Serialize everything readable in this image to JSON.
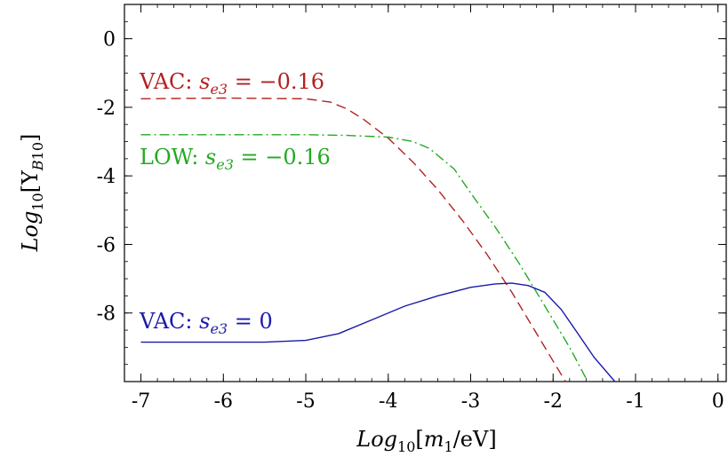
{
  "chart_data": {
    "type": "line",
    "xlabel": "Log10[m1/eV]",
    "ylabel": "Log10[YB10]",
    "xlim": [
      -7.2,
      0.1
    ],
    "ylim": [
      -10,
      1
    ],
    "x_ticks": [
      "-7",
      "-6",
      "-5",
      "-4",
      "-3",
      "-2",
      "-1",
      "0"
    ],
    "y_ticks": [
      "0",
      "-2",
      "-4",
      "-6",
      "-8"
    ],
    "grid": false,
    "series": [
      {
        "name": "VAC: se3 = −0.16",
        "label_prefix": "VAC: ",
        "label_var": "s",
        "label_sub": "e3",
        "label_rest": " = −0.16",
        "color": "#b22222",
        "style": "dashed",
        "points": [
          [
            -7.0,
            -1.75
          ],
          [
            -6.0,
            -1.73
          ],
          [
            -5.0,
            -1.75
          ],
          [
            -4.7,
            -1.85
          ],
          [
            -4.5,
            -2.05
          ],
          [
            -4.3,
            -2.35
          ],
          [
            -4.0,
            -2.9
          ],
          [
            -3.7,
            -3.6
          ],
          [
            -3.4,
            -4.4
          ],
          [
            -3.1,
            -5.3
          ],
          [
            -2.8,
            -6.3
          ],
          [
            -2.5,
            -7.4
          ],
          [
            -2.2,
            -8.6
          ],
          [
            -2.0,
            -9.4
          ],
          [
            -1.85,
            -10.0
          ]
        ]
      },
      {
        "name": "LOW: se3 = −0.16",
        "label_prefix": "LOW: ",
        "label_var": "s",
        "label_sub": "e3",
        "label_rest": " = −0.16",
        "color": "#22aa22",
        "style": "dashdot",
        "points": [
          [
            -7.0,
            -2.8
          ],
          [
            -5.0,
            -2.8
          ],
          [
            -4.5,
            -2.82
          ],
          [
            -4.0,
            -2.87
          ],
          [
            -3.7,
            -3.0
          ],
          [
            -3.5,
            -3.2
          ],
          [
            -3.2,
            -3.8
          ],
          [
            -3.0,
            -4.5
          ],
          [
            -2.7,
            -5.5
          ],
          [
            -2.4,
            -6.6
          ],
          [
            -2.1,
            -7.8
          ],
          [
            -1.8,
            -9.0
          ],
          [
            -1.58,
            -10.0
          ]
        ]
      },
      {
        "name": "VAC: se3 = 0",
        "label_prefix": "VAC: ",
        "label_var": "s",
        "label_sub": "e3",
        "label_rest": " = 0",
        "color": "#1a1aaa",
        "style": "solid",
        "points": [
          [
            -7.0,
            -8.85
          ],
          [
            -5.5,
            -8.85
          ],
          [
            -5.0,
            -8.8
          ],
          [
            -4.6,
            -8.6
          ],
          [
            -4.2,
            -8.2
          ],
          [
            -3.8,
            -7.8
          ],
          [
            -3.4,
            -7.5
          ],
          [
            -3.0,
            -7.25
          ],
          [
            -2.7,
            -7.15
          ],
          [
            -2.5,
            -7.13
          ],
          [
            -2.3,
            -7.2
          ],
          [
            -2.1,
            -7.4
          ],
          [
            -1.9,
            -7.9
          ],
          [
            -1.7,
            -8.6
          ],
          [
            -1.5,
            -9.3
          ],
          [
            -1.25,
            -10.0
          ]
        ]
      }
    ]
  }
}
